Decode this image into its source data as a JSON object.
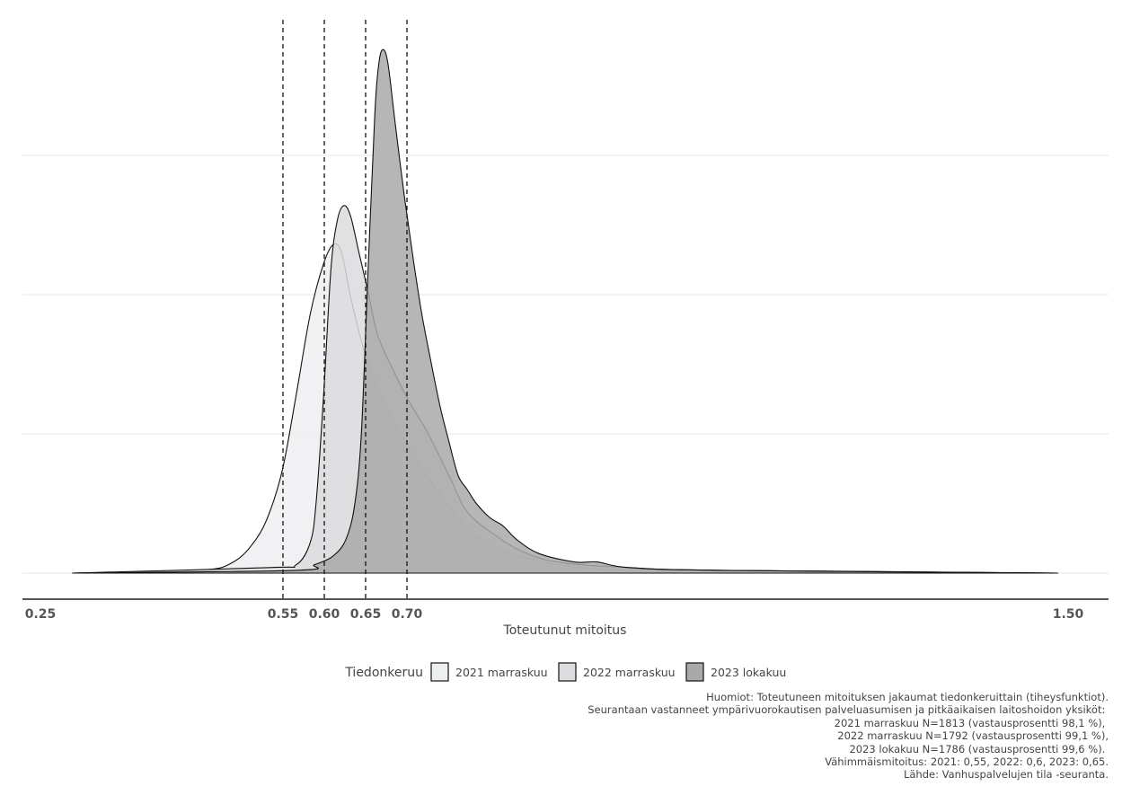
{
  "chart_data": {
    "type": "area",
    "subtype": "density",
    "xlabel": "Toteutunut mitoitus",
    "ylabel": "",
    "xlim": [
      0.25,
      1.5
    ],
    "ylim": [
      -0.9,
      19.9
    ],
    "x_ticks": [
      "0.25",
      "0.55",
      "0.60",
      "0.65",
      "0.70",
      "1.50"
    ],
    "y_gridlines": [
      0,
      5,
      10,
      15
    ],
    "grid": "horizontal",
    "vlines": [
      0.55,
      0.6,
      0.65,
      0.7
    ],
    "legend": {
      "title": "Tiedonkeruu",
      "placement": "bottom"
    },
    "series": [
      {
        "name": "2021 marraskuu",
        "color": "#eeeff1",
        "points": [
          [
            0.295,
            0
          ],
          [
            0.447,
            0.1
          ],
          [
            0.49,
            0.4
          ],
          [
            0.517,
            1.2
          ],
          [
            0.534,
            2.2
          ],
          [
            0.55,
            3.8
          ],
          [
            0.566,
            6.4
          ],
          [
            0.583,
            9.3
          ],
          [
            0.599,
            11.1
          ],
          [
            0.611,
            11.8
          ],
          [
            0.621,
            11.5
          ],
          [
            0.632,
            9.9
          ],
          [
            0.648,
            8.0
          ],
          [
            0.664,
            6.7
          ],
          [
            0.686,
            5.4
          ],
          [
            0.702,
            4.5
          ],
          [
            0.724,
            3.5
          ],
          [
            0.751,
            2.4
          ],
          [
            0.784,
            1.3
          ],
          [
            0.827,
            0.7
          ],
          [
            0.882,
            0.3
          ],
          [
            0.968,
            0.1
          ],
          [
            1.077,
            0.1
          ],
          [
            1.488,
            0
          ]
        ]
      },
      {
        "name": "2022 marraskuu",
        "color": "#dcdcde",
        "points": [
          [
            0.295,
            0
          ],
          [
            0.534,
            0.2
          ],
          [
            0.566,
            0.3
          ],
          [
            0.583,
            1.1
          ],
          [
            0.59,
            2.5
          ],
          [
            0.599,
            6.3
          ],
          [
            0.608,
            10.9
          ],
          [
            0.616,
            12.7
          ],
          [
            0.624,
            13.2
          ],
          [
            0.632,
            12.8
          ],
          [
            0.642,
            11.5
          ],
          [
            0.653,
            10.1
          ],
          [
            0.664,
            8.6
          ],
          [
            0.68,
            7.5
          ],
          [
            0.702,
            6.2
          ],
          [
            0.724,
            5.1
          ],
          [
            0.751,
            3.5
          ],
          [
            0.773,
            2.2
          ],
          [
            0.805,
            1.4
          ],
          [
            0.838,
            0.8
          ],
          [
            0.882,
            0.4
          ],
          [
            0.968,
            0.2
          ],
          [
            1.077,
            0.1
          ],
          [
            1.488,
            0
          ]
        ]
      },
      {
        "name": "2023 lokakuu",
        "color": "#a9a9a9",
        "points": [
          [
            0.295,
            0
          ],
          [
            0.566,
            0.1
          ],
          [
            0.588,
            0.3
          ],
          [
            0.61,
            0.6
          ],
          [
            0.626,
            1.2
          ],
          [
            0.637,
            2.5
          ],
          [
            0.645,
            5.1
          ],
          [
            0.653,
            10.9
          ],
          [
            0.661,
            16.4
          ],
          [
            0.666,
            18.3
          ],
          [
            0.671,
            18.8
          ],
          [
            0.677,
            18.3
          ],
          [
            0.686,
            16.1
          ],
          [
            0.697,
            13.5
          ],
          [
            0.708,
            11.2
          ],
          [
            0.718,
            9.3
          ],
          [
            0.729,
            7.6
          ],
          [
            0.74,
            6.0
          ],
          [
            0.751,
            4.7
          ],
          [
            0.762,
            3.5
          ],
          [
            0.773,
            3.0
          ],
          [
            0.784,
            2.5
          ],
          [
            0.8,
            2.0
          ],
          [
            0.816,
            1.7
          ],
          [
            0.833,
            1.2
          ],
          [
            0.86,
            0.7
          ],
          [
            0.903,
            0.4
          ],
          [
            0.93,
            0.4
          ],
          [
            0.968,
            0.2
          ],
          [
            1.077,
            0.1
          ],
          [
            1.488,
            0
          ]
        ]
      }
    ],
    "caption": [
      "Huomiot: Toteutuneen mitoituksen jakaumat tiedonkeruittain (tiheysfunktiot).",
      "Seurantaan vastanneet ympärivuorokautisen palveluasumisen ja pitkäaikaisen laitoshoidon yksiköt: ",
      "2021 marraskuu N=1813 (vastausprosentti 98,1 %), ",
      "2022 marraskuu N=1792 (vastausprosentti 99,1 %),",
      "2023 lokakuu N=1786 (vastausprosentti 99,6 %). ",
      "Vähimmäismitoitus: 2021: 0,55, 2022: 0,6, 2023: 0,65.",
      "Lähde: Vanhuspalvelujen tila -seuranta."
    ]
  }
}
